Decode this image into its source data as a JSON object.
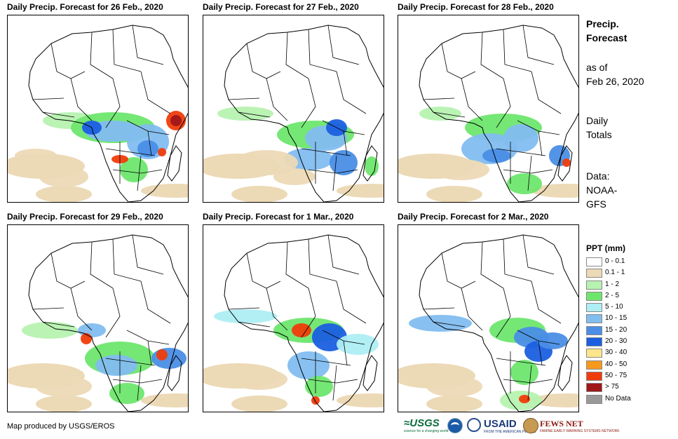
{
  "panels": [
    {
      "title": "Daily Precip. Forecast for 26 Feb., 2020"
    },
    {
      "title": "Daily Precip. Forecast for 27 Feb., 2020"
    },
    {
      "title": "Daily Precip. Forecast for 28 Feb., 2020"
    },
    {
      "title": "Daily Precip. Forecast for 29 Feb., 2020"
    },
    {
      "title": "Daily Precip. Forecast for 1 Mar., 2020"
    },
    {
      "title": "Daily Precip. Forecast for 2 Mar., 2020"
    }
  ],
  "side": {
    "title_line1": "Precip.",
    "title_line2": "Forecast",
    "asof_line1": "as of",
    "asof_line2": "Feb 26, 2020",
    "totals_line1": "Daily",
    "totals_line2": "Totals",
    "data_line1": "Data:",
    "data_line2": "NOAA-",
    "data_line3": "GFS"
  },
  "legend": {
    "title": "PPT (mm)",
    "items": [
      {
        "label": "0 - 0.1",
        "color": "#ffffff"
      },
      {
        "label": "0.1 - 1",
        "color": "#ecd9b6"
      },
      {
        "label": "1 - 2",
        "color": "#b6f2b0"
      },
      {
        "label": "2 - 5",
        "color": "#6ee66e"
      },
      {
        "label": "5 - 10",
        "color": "#aeeef4"
      },
      {
        "label": "10 - 15",
        "color": "#82bdf0"
      },
      {
        "label": "15 - 20",
        "color": "#4a8ee6"
      },
      {
        "label": "20 - 30",
        "color": "#1b5fe0"
      },
      {
        "label": "30 - 40",
        "color": "#fde68a"
      },
      {
        "label": "40 - 50",
        "color": "#f79a1c"
      },
      {
        "label": "50 - 75",
        "color": "#f03c0a"
      },
      {
        "label": "> 75",
        "color": "#a01818"
      },
      {
        "label": "No Data",
        "color": "#999999"
      }
    ]
  },
  "footer": {
    "credit": "Map produced by USGS/EROS"
  },
  "logos": {
    "usgs": "≈USGS",
    "usgs_tagline": "science for a changing world",
    "usaid": "USAID",
    "usaid_tagline": "FROM THE AMERICAN PEOPLE",
    "fews": "FEWS NET",
    "fews_tagline": "FAMINE EARLY WARNING SYSTEMS NETWORK"
  }
}
